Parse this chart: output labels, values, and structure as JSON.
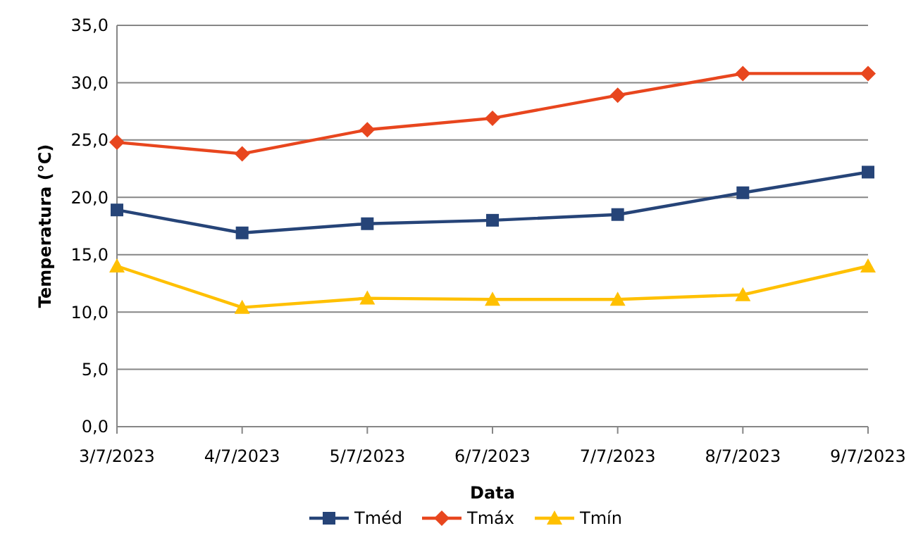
{
  "chart_data": {
    "type": "line",
    "xlabel": "Data",
    "ylabel": "Temperatura (°C)",
    "categories": [
      "3/7/2023",
      "4/7/2023",
      "5/7/2023",
      "6/7/2023",
      "7/7/2023",
      "8/7/2023",
      "9/7/2023"
    ],
    "series": [
      {
        "name": "Tméd",
        "color": "#264478",
        "marker": "square",
        "values": [
          18.9,
          16.9,
          17.7,
          18.0,
          18.5,
          20.4,
          22.2
        ]
      },
      {
        "name": "Tmáx",
        "color": "#e8461e",
        "marker": "diamond",
        "values": [
          24.8,
          23.8,
          25.9,
          26.9,
          28.9,
          30.8,
          30.8
        ]
      },
      {
        "name": "Tmín",
        "color": "#ffc000",
        "marker": "triangle",
        "values": [
          14.0,
          10.4,
          11.2,
          11.1,
          11.1,
          11.5,
          14.0
        ]
      }
    ],
    "ylim": [
      0,
      35
    ],
    "yticks": [
      {
        "value": 0,
        "label": "0,0"
      },
      {
        "value": 5,
        "label": "5,0"
      },
      {
        "value": 10,
        "label": "10,0"
      },
      {
        "value": 15,
        "label": "15,0"
      },
      {
        "value": 20,
        "label": "20,0"
      },
      {
        "value": 25,
        "label": "25,0"
      },
      {
        "value": 30,
        "label": "30,0"
      },
      {
        "value": 35,
        "label": "35,0"
      }
    ],
    "grid": "y",
    "legend": "bottom",
    "line_style": "solid"
  }
}
